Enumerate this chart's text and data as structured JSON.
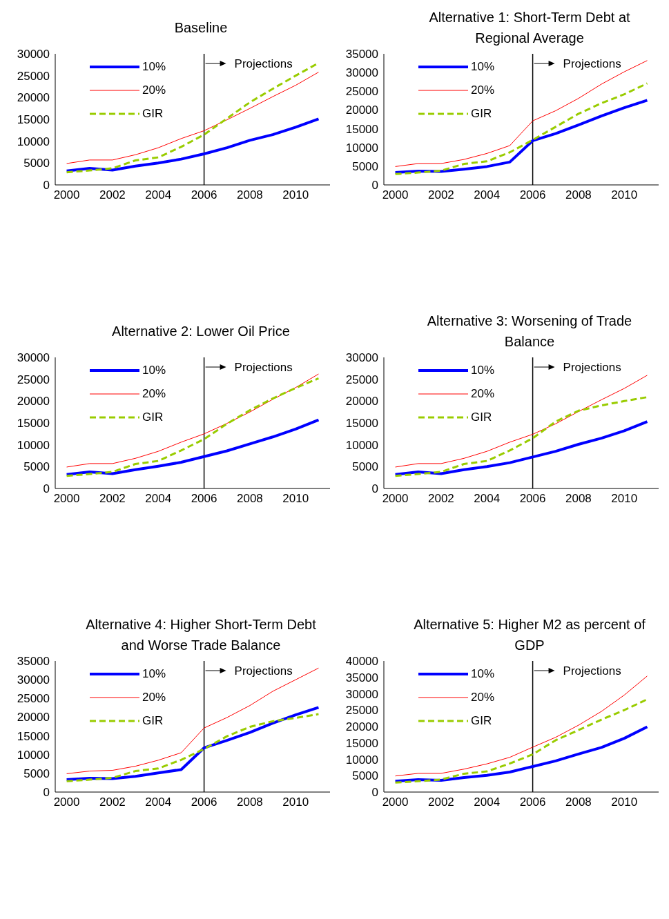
{
  "chart_data": [
    {
      "type": "line",
      "title": "Baseline",
      "x": [
        2000,
        2001,
        2002,
        2003,
        2004,
        2005,
        2006,
        2007,
        2008,
        2009,
        2010,
        2011
      ],
      "xlim": [
        1999.5,
        2011.5
      ],
      "xticks": [
        2000,
        2002,
        2004,
        2006,
        2008,
        2010
      ],
      "ylim": [
        0,
        30000
      ],
      "yticks": [
        0,
        5000,
        10000,
        15000,
        20000,
        25000,
        30000
      ],
      "legend": "top left",
      "ref_lines": [
        {
          "axis": "x",
          "value": 2006,
          "label": "Projections",
          "color": "#000000"
        }
      ],
      "series": [
        {
          "name": "10%",
          "color": "#0000ff",
          "line_style": "solid",
          "values": [
            3200,
            3800,
            3400,
            4300,
            5000,
            5900,
            7100,
            8500,
            10200,
            11500,
            13200,
            15100
          ]
        },
        {
          "name": "20%",
          "color": "#ff0000",
          "line_style": "solid",
          "values": [
            4900,
            5700,
            5700,
            6900,
            8500,
            10600,
            12400,
            14900,
            17500,
            20200,
            22800,
            25800
          ]
        },
        {
          "name": "GIR",
          "color": "#99cc00",
          "line_style": "dashed",
          "values": [
            2900,
            3300,
            3800,
            5600,
            6300,
            8700,
            11500,
            15200,
            18900,
            22000,
            25000,
            27900
          ]
        }
      ]
    },
    {
      "type": "line",
      "title": "Alternative 1: Short-Term Debt at Regional Average",
      "x": [
        2000,
        2001,
        2002,
        2003,
        2004,
        2005,
        2006,
        2007,
        2008,
        2009,
        2010,
        2011
      ],
      "xlim": [
        1999.5,
        2011.5
      ],
      "xticks": [
        2000,
        2002,
        2004,
        2006,
        2008,
        2010
      ],
      "ylim": [
        0,
        35000
      ],
      "yticks": [
        0,
        5000,
        10000,
        15000,
        20000,
        25000,
        30000,
        35000
      ],
      "legend": "top left",
      "ref_lines": [
        {
          "axis": "x",
          "value": 2006,
          "label": "Projections",
          "color": "#000000"
        }
      ],
      "series": [
        {
          "name": "10%",
          "color": "#0000ff",
          "line_style": "solid",
          "values": [
            3300,
            3700,
            3600,
            4200,
            4900,
            6100,
            11800,
            13700,
            16000,
            18400,
            20600,
            22600
          ]
        },
        {
          "name": "20%",
          "color": "#ff0000",
          "line_style": "solid",
          "values": [
            4900,
            5700,
            5700,
            6800,
            8400,
            10500,
            17100,
            19800,
            23100,
            26900,
            30200,
            33200
          ]
        },
        {
          "name": "GIR",
          "color": "#99cc00",
          "line_style": "dashed",
          "values": [
            2900,
            3300,
            3800,
            5600,
            6300,
            8700,
            12000,
            15500,
            19000,
            21800,
            24200,
            27100
          ]
        }
      ]
    },
    {
      "type": "line",
      "title": "Alternative 2: Lower Oil Price",
      "x": [
        2000,
        2001,
        2002,
        2003,
        2004,
        2005,
        2006,
        2007,
        2008,
        2009,
        2010,
        2011
      ],
      "xlim": [
        1999.5,
        2011.5
      ],
      "xticks": [
        2000,
        2002,
        2004,
        2006,
        2008,
        2010
      ],
      "ylim": [
        0,
        30000
      ],
      "yticks": [
        0,
        5000,
        10000,
        15000,
        20000,
        25000,
        30000
      ],
      "legend": "top left",
      "ref_lines": [
        {
          "axis": "x",
          "value": 2006,
          "label": "Projections",
          "color": "#000000"
        }
      ],
      "series": [
        {
          "name": "10%",
          "color": "#0000ff",
          "line_style": "solid",
          "values": [
            3200,
            3800,
            3400,
            4300,
            5100,
            6000,
            7300,
            8600,
            10200,
            11800,
            13600,
            15700
          ]
        },
        {
          "name": "20%",
          "color": "#ff0000",
          "line_style": "solid",
          "values": [
            4900,
            5700,
            5700,
            6900,
            8500,
            10600,
            12500,
            14900,
            17500,
            20400,
            23100,
            26200
          ]
        },
        {
          "name": "GIR",
          "color": "#99cc00",
          "line_style": "dashed",
          "values": [
            2900,
            3300,
            3800,
            5600,
            6300,
            8700,
            11300,
            14800,
            17900,
            20600,
            23000,
            25200
          ]
        }
      ]
    },
    {
      "type": "line",
      "title": "Alternative 3: Worsening of Trade Balance",
      "x": [
        2000,
        2001,
        2002,
        2003,
        2004,
        2005,
        2006,
        2007,
        2008,
        2009,
        2010,
        2011
      ],
      "xlim": [
        1999.5,
        2011.5
      ],
      "xticks": [
        2000,
        2002,
        2004,
        2006,
        2008,
        2010
      ],
      "ylim": [
        0,
        30000
      ],
      "yticks": [
        0,
        5000,
        10000,
        15000,
        20000,
        25000,
        30000
      ],
      "legend": "top left",
      "ref_lines": [
        {
          "axis": "x",
          "value": 2006,
          "label": "Projections",
          "color": "#000000"
        }
      ],
      "series": [
        {
          "name": "10%",
          "color": "#0000ff",
          "line_style": "solid",
          "values": [
            3200,
            3800,
            3400,
            4300,
            5000,
            5900,
            7200,
            8500,
            10100,
            11500,
            13200,
            15300
          ]
        },
        {
          "name": "20%",
          "color": "#ff0000",
          "line_style": "solid",
          "values": [
            4900,
            5700,
            5700,
            6900,
            8500,
            10600,
            12400,
            14800,
            17600,
            20300,
            22900,
            25900
          ]
        },
        {
          "name": "GIR",
          "color": "#99cc00",
          "line_style": "dashed",
          "values": [
            2900,
            3300,
            3800,
            5600,
            6300,
            8700,
            11500,
            15300,
            17800,
            19000,
            20000,
            20900
          ]
        }
      ]
    },
    {
      "type": "line",
      "title": "Alternative 4: Higher Short-Term Debt and Worse Trade Balance",
      "x": [
        2000,
        2001,
        2002,
        2003,
        2004,
        2005,
        2006,
        2007,
        2008,
        2009,
        2010,
        2011
      ],
      "xlim": [
        1999.5,
        2011.5
      ],
      "xticks": [
        2000,
        2002,
        2004,
        2006,
        2008,
        2010
      ],
      "ylim": [
        0,
        35000
      ],
      "yticks": [
        0,
        5000,
        10000,
        15000,
        20000,
        25000,
        30000,
        35000
      ],
      "legend": "top left",
      "ref_lines": [
        {
          "axis": "x",
          "value": 2006,
          "label": "Projections",
          "color": "#000000"
        }
      ],
      "series": [
        {
          "name": "10%",
          "color": "#0000ff",
          "line_style": "solid",
          "values": [
            3300,
            3700,
            3600,
            4200,
            5100,
            6000,
            11800,
            13800,
            15900,
            18400,
            20600,
            22600
          ]
        },
        {
          "name": "20%",
          "color": "#ff0000",
          "line_style": "solid",
          "values": [
            4900,
            5600,
            5800,
            6900,
            8500,
            10500,
            17100,
            19900,
            23100,
            26900,
            30000,
            33100
          ]
        },
        {
          "name": "GIR",
          "color": "#99cc00",
          "line_style": "dashed",
          "values": [
            2900,
            3300,
            3800,
            5600,
            6300,
            8600,
            11500,
            14900,
            17400,
            18900,
            19800,
            20800
          ]
        }
      ]
    },
    {
      "type": "line",
      "title": "Alternative 5: Higher M2 as percent of GDP",
      "x": [
        2000,
        2001,
        2002,
        2003,
        2004,
        2005,
        2006,
        2007,
        2008,
        2009,
        2010,
        2011
      ],
      "xlim": [
        1999.5,
        2011.5
      ],
      "xticks": [
        2000,
        2002,
        2004,
        2006,
        2008,
        2010
      ],
      "ylim": [
        0,
        40000
      ],
      "yticks": [
        0,
        5000,
        10000,
        15000,
        20000,
        25000,
        30000,
        35000,
        40000
      ],
      "legend": "top left",
      "ref_lines": [
        {
          "axis": "x",
          "value": 2006,
          "label": "Projections",
          "color": "#000000"
        }
      ],
      "series": [
        {
          "name": "10%",
          "color": "#0000ff",
          "line_style": "solid",
          "values": [
            3300,
            3800,
            3600,
            4400,
            5100,
            6100,
            7800,
            9500,
            11600,
            13600,
            16400,
            19900
          ]
        },
        {
          "name": "20%",
          "color": "#ff0000",
          "line_style": "solid",
          "values": [
            4900,
            5700,
            5700,
            7000,
            8600,
            10600,
            13700,
            16700,
            20400,
            24600,
            29600,
            35400
          ]
        },
        {
          "name": "GIR",
          "color": "#99cc00",
          "line_style": "dashed",
          "values": [
            2900,
            3300,
            3800,
            5600,
            6300,
            8700,
            11500,
            15800,
            18900,
            22100,
            25000,
            28300
          ]
        }
      ]
    }
  ]
}
